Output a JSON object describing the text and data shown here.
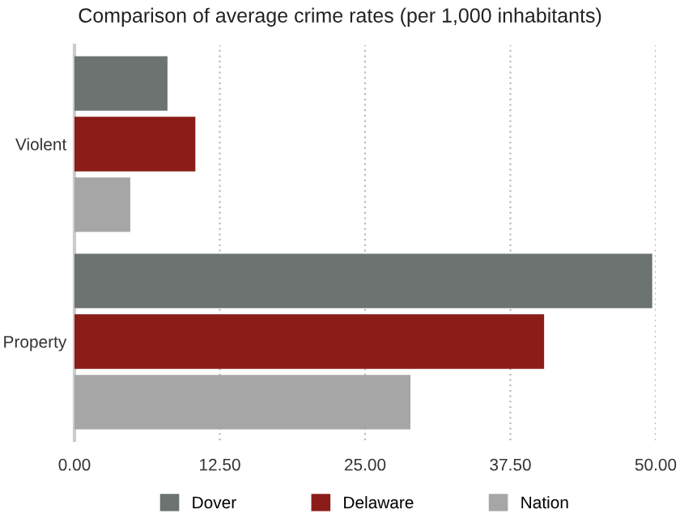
{
  "chart_data": {
    "type": "bar",
    "orientation": "horizontal",
    "title": "Comparison of average crime rates (per 1,000 inhabitants)",
    "categories": [
      "Violent",
      "Property"
    ],
    "series": [
      {
        "name": "Dover",
        "color": "#6d7370",
        "values": [
          8.0,
          49.7
        ]
      },
      {
        "name": "Delaware",
        "color": "#8b1d18",
        "values": [
          10.4,
          40.4
        ]
      },
      {
        "name": "Nation",
        "color": "#a6a6a6",
        "values": [
          4.8,
          28.9
        ]
      }
    ],
    "xlim": [
      0,
      50
    ],
    "xticks": [
      {
        "value": 0,
        "label": "0.00"
      },
      {
        "value": 12.5,
        "label": "12.50"
      },
      {
        "value": 25,
        "label": "25.00"
      },
      {
        "value": 37.5,
        "label": "37.50"
      },
      {
        "value": 50,
        "label": "50.00"
      }
    ],
    "grid": "x",
    "legend": "bottom"
  }
}
